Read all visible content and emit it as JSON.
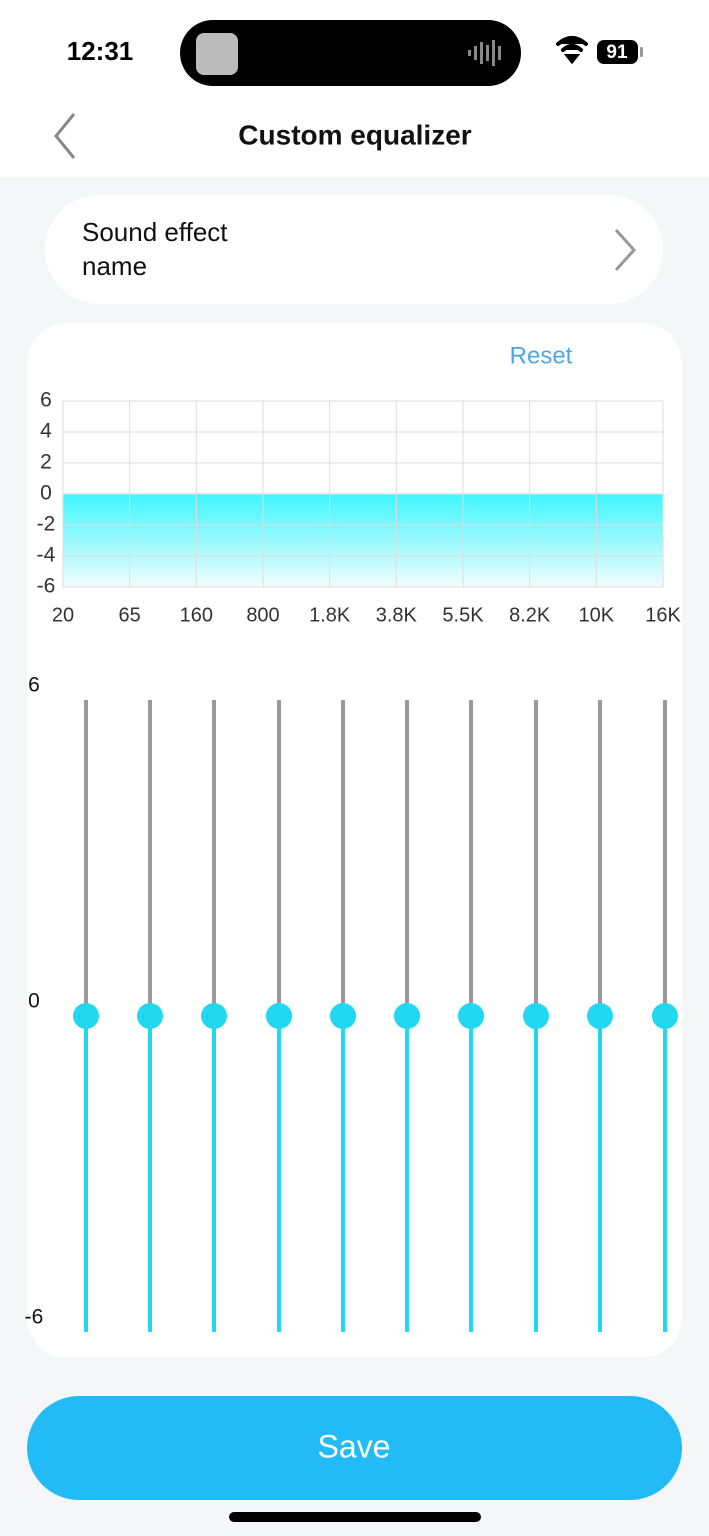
{
  "status_bar": {
    "time": "12:31",
    "battery": "91"
  },
  "header": {
    "title": "Custom equalizer"
  },
  "sound_effect": {
    "label": "Sound effect name"
  },
  "reset": "Reset",
  "chart_data": {
    "type": "area",
    "categories": [
      "20",
      "65",
      "160",
      "800",
      "1.8K",
      "3.8K",
      "5.5K",
      "8.2K",
      "10K",
      "16K"
    ],
    "values": [
      0,
      0,
      0,
      0,
      0,
      0,
      0,
      0,
      0,
      0
    ],
    "color": "#3ff6ff",
    "ylim": [
      -6,
      6
    ],
    "yticks": [
      -6,
      -4,
      -2,
      0,
      2,
      4,
      6
    ],
    "grid": true
  },
  "sliders": {
    "ylim": [
      -6,
      6
    ],
    "yticks": [
      -6,
      0,
      6
    ],
    "values": [
      0,
      0,
      0,
      0,
      0,
      0,
      0,
      0,
      0,
      0
    ],
    "color": "#22d8f0"
  },
  "save": "Save"
}
